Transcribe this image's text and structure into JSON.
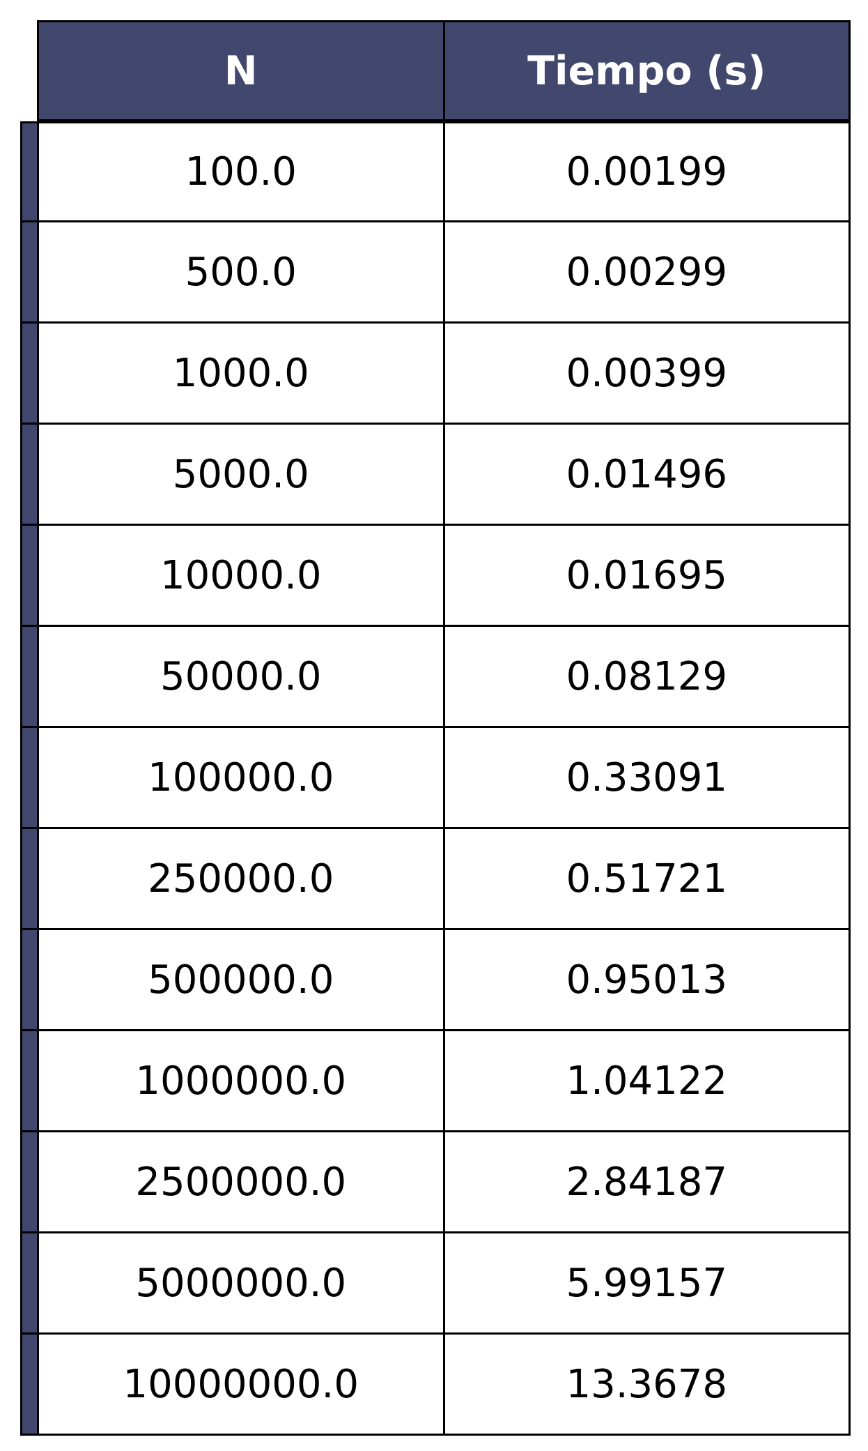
{
  "chart_data": {
    "type": "table",
    "columns": [
      "N",
      "Tiempo (s)"
    ],
    "rows": [
      [
        "100.0",
        "0.00199"
      ],
      [
        "500.0",
        "0.00299"
      ],
      [
        "1000.0",
        "0.00399"
      ],
      [
        "5000.0",
        "0.01496"
      ],
      [
        "10000.0",
        "0.01695"
      ],
      [
        "50000.0",
        "0.08129"
      ],
      [
        "100000.0",
        "0.33091"
      ],
      [
        "250000.0",
        "0.51721"
      ],
      [
        "500000.0",
        "0.95013"
      ],
      [
        "1000000.0",
        "1.04122"
      ],
      [
        "2500000.0",
        "2.84187"
      ],
      [
        "5000000.0",
        "5.99157"
      ],
      [
        "10000000.0",
        "13.3678"
      ]
    ]
  },
  "colors": {
    "header_background": "#41476d",
    "header_text": "#ffffff",
    "row_marker": "#41476d",
    "border": "#000000"
  }
}
